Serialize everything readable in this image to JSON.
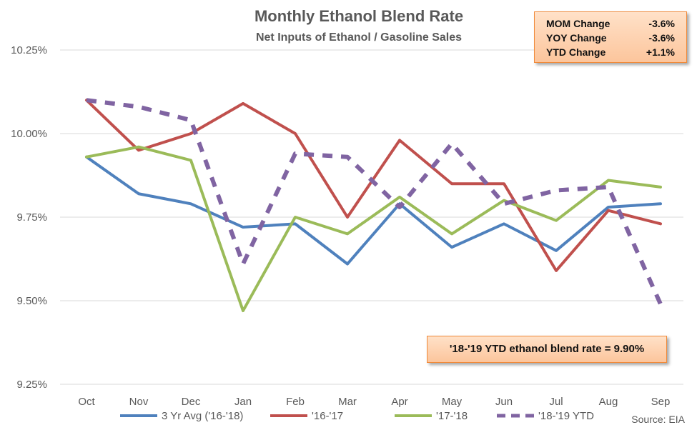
{
  "chart_data": {
    "type": "line",
    "title": "Monthly Ethanol Blend Rate",
    "subtitle": "Net Inputs of Ethanol / Gasoline Sales",
    "categories": [
      "Oct",
      "Nov",
      "Dec",
      "Jan",
      "Feb",
      "Mar",
      "Apr",
      "May",
      "Jun",
      "Jul",
      "Aug",
      "Sep"
    ],
    "ylim": [
      9.25,
      10.25
    ],
    "y_ticks": [
      "9.25%",
      "9.50%",
      "9.75%",
      "10.00%",
      "10.25%"
    ],
    "grid": true,
    "legend_position": "bottom",
    "series": [
      {
        "name": "3 Yr Avg ('16-'18)",
        "color": "#4f81bd",
        "dashed": false,
        "values": [
          9.93,
          9.82,
          9.79,
          9.72,
          9.73,
          9.61,
          9.79,
          9.66,
          9.73,
          9.65,
          9.78,
          9.79
        ]
      },
      {
        "name": "'16-'17",
        "color": "#c0504d",
        "dashed": false,
        "values": [
          10.1,
          9.95,
          10.0,
          10.09,
          10.0,
          9.75,
          9.98,
          9.85,
          9.85,
          9.59,
          9.77,
          9.73
        ]
      },
      {
        "name": "'17-'18",
        "color": "#9bbb59",
        "dashed": false,
        "values": [
          9.93,
          9.96,
          9.92,
          9.47,
          9.75,
          9.7,
          9.81,
          9.7,
          9.8,
          9.74,
          9.86,
          9.84
        ]
      },
      {
        "name": "'18-'19 YTD",
        "color": "#8064a2",
        "dashed": true,
        "values": [
          10.1,
          10.08,
          10.04,
          9.61,
          9.94,
          9.93,
          9.78,
          9.97,
          9.79,
          9.83,
          9.84,
          9.49
        ]
      }
    ],
    "source": "Source: EIA"
  },
  "stats_box": {
    "rows": [
      {
        "label": "MOM Change",
        "value": "-3.6%"
      },
      {
        "label": "YOY Change",
        "value": "-3.6%"
      },
      {
        "label": "YTD Change",
        "value": "+1.1%"
      }
    ]
  },
  "annotation": {
    "text": "'18-'19 YTD ethanol blend rate = 9.90%"
  }
}
